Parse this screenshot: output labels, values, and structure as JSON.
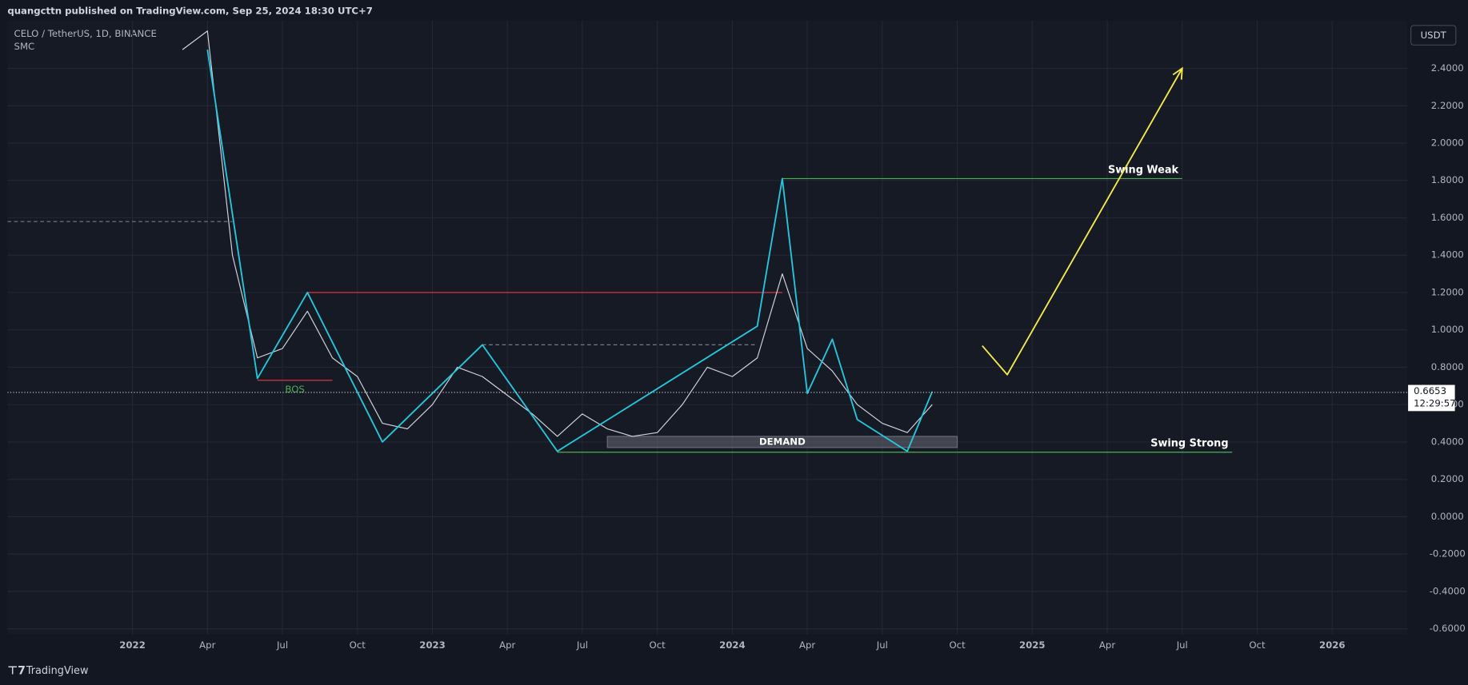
{
  "header": {
    "publisher": "quangcttn published on TradingView.com, Sep 25, 2024 18:30 UTC+7",
    "symbol": "CELO / TetherUS, 1D, BINANCE",
    "indicator": "SMC",
    "currency": "USDT"
  },
  "footer": {
    "logo": "TradingView"
  },
  "chart_data": {
    "type": "line",
    "series": [
      {
        "color": "#d1d4dc",
        "x": [
          "2022-03",
          "2022-04",
          "2022-05",
          "2022-06",
          "2022-07",
          "2022-08",
          "2022-09",
          "2022-10",
          "2022-11",
          "2022-12",
          "2023-01",
          "2023-02",
          "2023-03",
          "2023-04",
          "2023-05",
          "2023-06",
          "2023-07",
          "2023-08",
          "2023-09",
          "2023-10",
          "2023-11",
          "2023-12",
          "2024-01",
          "2024-02",
          "2024-03",
          "2024-04",
          "2024-05",
          "2024-06",
          "2024-07",
          "2024-08",
          "2024-09"
        ],
        "values": [
          2.5,
          2.6,
          1.4,
          0.85,
          0.9,
          1.1,
          0.85,
          0.75,
          0.5,
          0.47,
          0.6,
          0.8,
          0.75,
          0.65,
          0.55,
          0.43,
          0.55,
          0.47,
          0.43,
          0.45,
          0.6,
          0.8,
          0.75,
          0.85,
          1.3,
          0.9,
          0.78,
          0.6,
          0.5,
          0.45,
          0.6
        ]
      },
      {
        "color": "#26c6da",
        "x": [
          "2022-04",
          "2022-06",
          "2022-08",
          "2022-11",
          "2023-03",
          "2023-06",
          "2024-02",
          "2024-03",
          "2024-04",
          "2024-05",
          "2024-06",
          "2024-08",
          "2024-09"
        ],
        "values": [
          2.5,
          0.74,
          1.2,
          0.4,
          0.92,
          0.35,
          1.02,
          1.81,
          0.66,
          0.95,
          0.52,
          0.35,
          0.67
        ]
      },
      {
        "color": "#f5e94a",
        "x": [
          "2024-11",
          "2024-12",
          "2025-07"
        ],
        "values": [
          0.915,
          0.76,
          2.4
        ]
      }
    ],
    "levels": [
      {
        "label": "Swing Weak",
        "value": 1.81,
        "from": "2024-03",
        "to": "2025-07",
        "color": "#4caf50"
      },
      {
        "label": "Swing Strong",
        "value": 0.345,
        "from": "2023-06",
        "to": "2025-09",
        "color": "#4caf50"
      },
      {
        "value": 1.2,
        "from": "2022-08",
        "to": "2024-03",
        "color": "#f23645"
      },
      {
        "label": "BOS",
        "value": 0.73,
        "from": "2022-06",
        "to": "2022-09",
        "color": "#f23645"
      },
      {
        "value": 1.58,
        "from": "2021-08",
        "to": "2022-05",
        "color": "#787b86",
        "dashed": true
      },
      {
        "value": 0.92,
        "from": "2023-03",
        "to": "2024-02",
        "color": "#787b86",
        "dashed": true
      }
    ],
    "zones": [
      {
        "label": "DEMAND",
        "from": "2023-08",
        "to": "2024-10",
        "low": 0.37,
        "high": 0.43,
        "color": "#787b86"
      }
    ],
    "last_price": 0.6653,
    "countdown": "12:29:57",
    "xlim": [
      "2021-08",
      "2026-04"
    ],
    "xticks": [
      {
        "value": "2022-01",
        "label": "2022"
      },
      {
        "value": "2022-04",
        "label": "Apr"
      },
      {
        "value": "2022-07",
        "label": "Jul"
      },
      {
        "value": "2022-10",
        "label": "Oct"
      },
      {
        "value": "2023-01",
        "label": "2023"
      },
      {
        "value": "2023-04",
        "label": "Apr"
      },
      {
        "value": "2023-07",
        "label": "Jul"
      },
      {
        "value": "2023-10",
        "label": "Oct"
      },
      {
        "value": "2024-01",
        "label": "2024"
      },
      {
        "value": "2024-04",
        "label": "Apr"
      },
      {
        "value": "2024-07",
        "label": "Jul"
      },
      {
        "value": "2024-10",
        "label": "Oct"
      },
      {
        "value": "2025-01",
        "label": "2025"
      },
      {
        "value": "2025-04",
        "label": "Apr"
      },
      {
        "value": "2025-07",
        "label": "Jul"
      },
      {
        "value": "2025-10",
        "label": "Oct"
      },
      {
        "value": "2026-01",
        "label": "2026"
      }
    ],
    "ylim": [
      -0.63,
      2.655
    ],
    "yticks": [
      {
        "value": 2.4,
        "label": "2.4000"
      },
      {
        "value": 2.2,
        "label": "2.2000"
      },
      {
        "value": 2.0,
        "label": "2.0000"
      },
      {
        "value": 1.8,
        "label": "1.8000"
      },
      {
        "value": 1.6,
        "label": "1.6000"
      },
      {
        "value": 1.4,
        "label": "1.4000"
      },
      {
        "value": 1.2,
        "label": "1.2000"
      },
      {
        "value": 1.0,
        "label": "1.0000"
      },
      {
        "value": 0.8,
        "label": "0.8000"
      },
      {
        "value": 0.6,
        "label": "0.6000"
      },
      {
        "value": 0.4,
        "label": "0.4000"
      },
      {
        "value": 0.2,
        "label": "0.2000"
      },
      {
        "value": 0,
        "label": "0.0000"
      },
      {
        "value": -0.2,
        "label": "-0.2000"
      },
      {
        "value": -0.4,
        "label": "-0.4000"
      },
      {
        "value": -0.6,
        "label": "-0.6000"
      }
    ],
    "grid": true
  }
}
